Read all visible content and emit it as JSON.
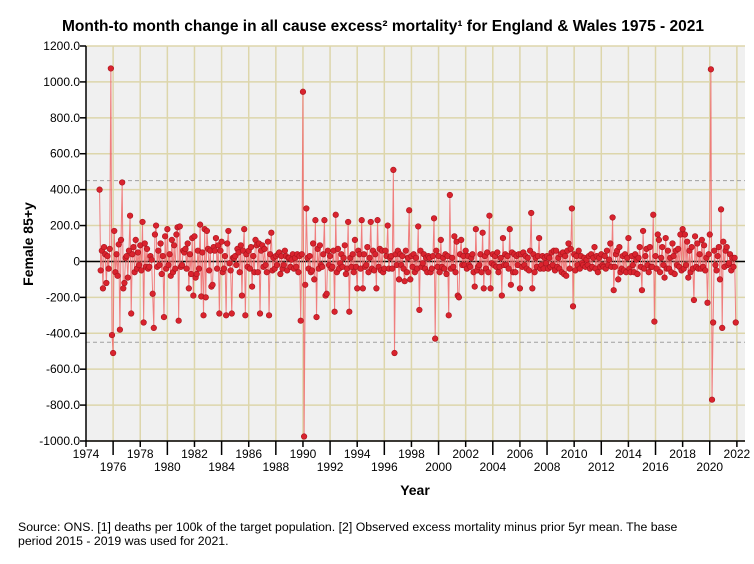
{
  "chart_data": {
    "type": "line",
    "title": "Month-to month change in all cause excess² mortality¹  for England & Wales 1975 - 2021",
    "xlabel": "Year",
    "ylabel": "Female 85+y",
    "xlim": [
      1974,
      2022
    ],
    "ylim": [
      -1000,
      1200
    ],
    "x_ticks": [
      "1974",
      "1976",
      "1978",
      "1980",
      "1982",
      "1984",
      "1986",
      "1988",
      "1990",
      "1992",
      "1994",
      "1996",
      "1998",
      "2000",
      "2002",
      "2004",
      "2006",
      "2008",
      "2010",
      "2012",
      "2014",
      "2016",
      "2018",
      "2020",
      "2022"
    ],
    "y_ticks": [
      "1200.0",
      "1000.0",
      "800.0",
      "600.0",
      "400.0",
      "200.0",
      "0",
      "-200.0",
      "-400.0",
      "-600.0",
      "-800.0",
      "-1000.0"
    ],
    "reference_lines": [
      450,
      0,
      -450
    ],
    "grid": true,
    "series": [
      {
        "name": "Female 85+y",
        "start_year": 1975,
        "frequency": "monthly",
        "color": "#d9232e",
        "values": [
          400,
          -50,
          60,
          -150,
          80,
          40,
          -120,
          30,
          -40,
          70,
          1075,
          -410,
          -510,
          170,
          -60,
          40,
          -80,
          95,
          -380,
          120,
          440,
          -150,
          -120,
          20,
          30,
          -90,
          60,
          255,
          -290,
          40,
          80,
          -60,
          120,
          -40,
          50,
          -20,
          90,
          -50,
          220,
          -340,
          100,
          -30,
          70,
          -40,
          -30,
          30,
          10,
          -180,
          -370,
          150,
          200,
          -30,
          60,
          -20,
          100,
          -70,
          30,
          -310,
          140,
          -40,
          180,
          -20,
          40,
          -80,
          120,
          -60,
          90,
          -40,
          150,
          190,
          -330,
          195,
          -30,
          -20,
          60,
          50,
          70,
          -40,
          100,
          -150,
          40,
          -70,
          130,
          -190,
          140,
          -90,
          -70,
          60,
          -40,
          205,
          -195,
          50,
          -300,
          180,
          -200,
          170,
          70,
          -50,
          60,
          -140,
          -130,
          80,
          60,
          130,
          -40,
          90,
          -290,
          60,
          110,
          -60,
          -40,
          30,
          -300,
          100,
          170,
          -10,
          -50,
          -290,
          20,
          20,
          30,
          -20,
          70,
          50,
          -60,
          90,
          -190,
          60,
          180,
          -300,
          40,
          -30,
          60,
          -40,
          80,
          -140,
          30,
          -60,
          120,
          90,
          -60,
          100,
          -290,
          60,
          90,
          -30,
          70,
          -20,
          -60,
          110,
          -300,
          40,
          160,
          -50,
          20,
          -40,
          30,
          -20,
          40,
          50,
          -70,
          30,
          -40,
          -20,
          60,
          30,
          -50,
          20,
          20,
          -30,
          10,
          40,
          -40,
          20,
          -30,
          40,
          -60,
          30,
          -330,
          40,
          945,
          -975,
          -130,
          295,
          20,
          -40,
          30,
          -60,
          -50,
          100,
          -100,
          230,
          -310,
          70,
          -40,
          90,
          -20,
          -30,
          40,
          230,
          -190,
          -180,
          60,
          -20,
          30,
          -40,
          -30,
          60,
          -280,
          260,
          -60,
          70,
          -40,
          -10,
          40,
          -30,
          20,
          90,
          -70,
          -40,
          220,
          -280,
          20,
          -30,
          40,
          -60,
          120,
          -30,
          -150,
          60,
          40,
          -40,
          230,
          -150,
          40,
          -30,
          -20,
          80,
          -60,
          20,
          220,
          -40,
          60,
          -50,
          40,
          -150,
          230,
          -30,
          70,
          -50,
          60,
          -60,
          -40,
          60,
          30,
          200,
          -40,
          20,
          30,
          -40,
          510,
          -510,
          40,
          -20,
          60,
          -100,
          40,
          -20,
          30,
          -40,
          -110,
          60,
          -60,
          20,
          285,
          -100,
          30,
          -30,
          40,
          -60,
          20,
          -40,
          195,
          -270,
          60,
          -30,
          -10,
          40,
          -40,
          20,
          -60,
          30,
          20,
          -60,
          -40,
          30,
          240,
          -430,
          60,
          -30,
          30,
          -60,
          120,
          -30,
          20,
          -40,
          40,
          -70,
          30,
          -300,
          370,
          -40,
          20,
          -30,
          140,
          -60,
          110,
          -190,
          -200,
          40,
          120,
          -20,
          30,
          -20,
          60,
          -40,
          30,
          -20,
          -30,
          20,
          40,
          -60,
          -140,
          180,
          -50,
          -30,
          -20,
          40,
          -60,
          160,
          -150,
          30,
          -40,
          50,
          -60,
          255,
          -150,
          -10,
          40,
          -20,
          30,
          -30,
          50,
          -60,
          -30,
          20,
          -190,
          130,
          -20,
          40,
          -20,
          30,
          -40,
          180,
          -130,
          50,
          -60,
          40,
          -60,
          30,
          -20,
          40,
          -150,
          40,
          -30,
          50,
          -20,
          30,
          -40,
          20,
          -50,
          60,
          270,
          -150,
          40,
          -60,
          20,
          -30,
          30,
          130,
          -40,
          -20,
          30,
          -40,
          20,
          -10,
          30,
          -40,
          20,
          -30,
          50,
          -20,
          60,
          -50,
          60,
          -30,
          20,
          -40,
          40,
          -60,
          50,
          -70,
          30,
          -80,
          60,
          100,
          -40,
          70,
          295,
          -250,
          40,
          -50,
          30,
          -20,
          60,
          -40,
          30,
          -10,
          -20,
          20,
          -30,
          10,
          -20,
          30,
          -40,
          40,
          -30,
          20,
          80,
          -40,
          30,
          -60,
          20,
          -30,
          40,
          -20,
          -30,
          30,
          -40,
          60,
          -20,
          10,
          100,
          -30,
          245,
          -160,
          -30,
          40,
          60,
          -100,
          80,
          -60,
          -40,
          30,
          -50,
          40,
          -60,
          20,
          130,
          -40,
          -60,
          30,
          -20,
          -60,
          40,
          10,
          -70,
          20,
          80,
          -30,
          -160,
          170,
          -40,
          30,
          70,
          -20,
          -60,
          80,
          -30,
          -30,
          260,
          -335,
          30,
          -40,
          150,
          120,
          -60,
          20,
          80,
          -20,
          -90,
          130,
          -40,
          60,
          -40,
          20,
          -60,
          100,
          30,
          -70,
          60,
          -20,
          70,
          -30,
          150,
          -50,
          180,
          -40,
          150,
          -20,
          110,
          -90,
          60,
          -60,
          80,
          -40,
          -215,
          140,
          -30,
          100,
          -40,
          40,
          -40,
          120,
          -30,
          90,
          -50,
          20,
          -230,
          40,
          150,
          1070,
          -770,
          -340,
          60,
          -20,
          -50,
          30,
          80,
          -100,
          290,
          -370,
          110,
          -30,
          60,
          80,
          -20,
          -10,
          40,
          -50,
          20,
          -30,
          20,
          -340
        ]
      }
    ]
  },
  "footnote": {
    "line1": "Source: ONS. [1] deaths per 100k of the target population. [2] Observed excess mortality minus prior 5yr mean. The base",
    "line2": "period 2015 - 2019 was used for 2021."
  }
}
